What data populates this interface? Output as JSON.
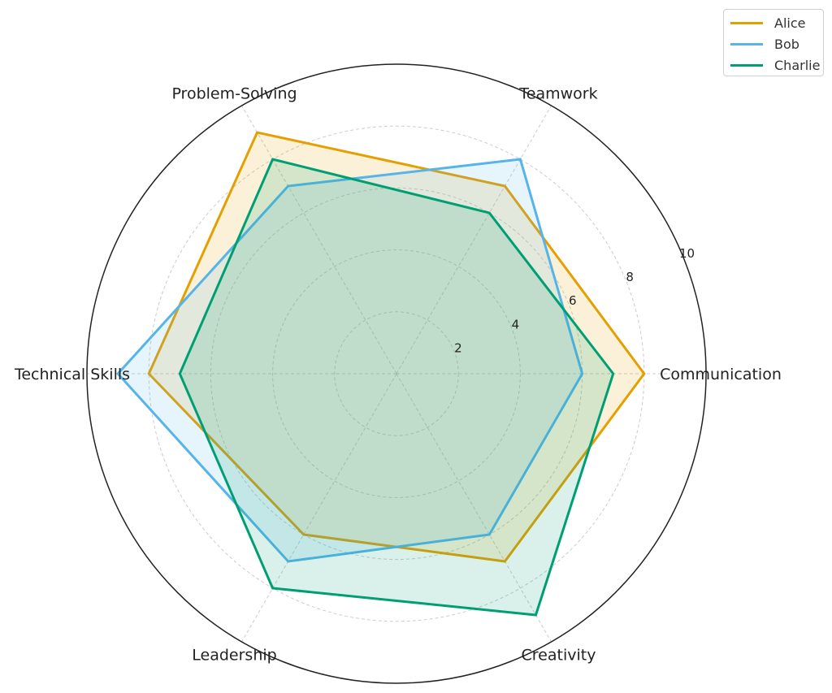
{
  "chart_data": {
    "type": "radar",
    "categories": [
      "Communication",
      "Teamwork",
      "Problem-Solving",
      "Technical Skills",
      "Leadership",
      "Creativity"
    ],
    "series": [
      {
        "name": "Alice",
        "color": "#E69F00",
        "values": [
          8,
          7,
          9,
          8,
          6,
          7
        ]
      },
      {
        "name": "Bob",
        "color": "#56B4E9",
        "values": [
          6,
          8,
          7,
          9,
          7,
          6
        ]
      },
      {
        "name": "Charlie",
        "color": "#009E73",
        "values": [
          7,
          6,
          8,
          7,
          8,
          9
        ]
      }
    ],
    "rlim": [
      0,
      10
    ],
    "rticks": [
      "2",
      "4",
      "6",
      "8",
      "10"
    ],
    "grid": true,
    "legend": "top-right"
  }
}
